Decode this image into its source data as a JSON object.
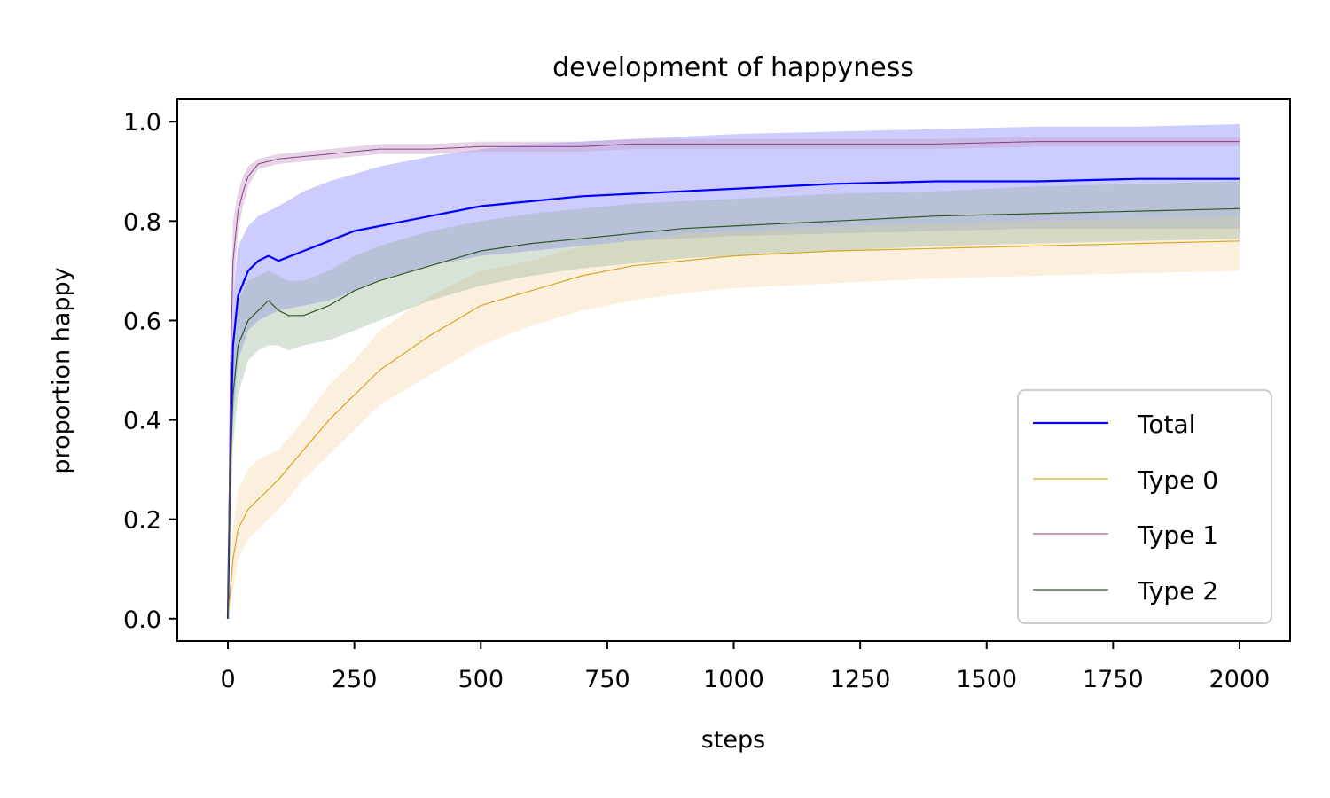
{
  "chart_data": {
    "type": "line",
    "title": "development of happyness",
    "xlabel": "steps",
    "ylabel": "proportion happy",
    "xlim": [
      -100,
      2100
    ],
    "ylim": [
      -0.045,
      1.045
    ],
    "xticks": [
      0,
      250,
      500,
      750,
      1000,
      1250,
      1500,
      1750,
      2000
    ],
    "xtick_labels": [
      "0",
      "250",
      "500",
      "750",
      "1000",
      "1250",
      "1500",
      "1750",
      "2000"
    ],
    "yticks": [
      0.0,
      0.2,
      0.4,
      0.6,
      0.8,
      1.0
    ],
    "ytick_labels": [
      "0.0",
      "0.2",
      "0.4",
      "0.6",
      "0.8",
      "1.0"
    ],
    "grid": false,
    "legend_position": "lower-right",
    "series": [
      {
        "name": "Total",
        "color": "#0000ff",
        "band_color": "#0000ff",
        "x": [
          0,
          5,
          10,
          20,
          40,
          60,
          80,
          100,
          150,
          200,
          250,
          300,
          400,
          500,
          600,
          700,
          800,
          900,
          1000,
          1200,
          1400,
          1600,
          1800,
          2000
        ],
        "y": [
          0.0,
          0.35,
          0.55,
          0.65,
          0.7,
          0.72,
          0.73,
          0.72,
          0.74,
          0.76,
          0.78,
          0.79,
          0.81,
          0.83,
          0.84,
          0.85,
          0.855,
          0.86,
          0.865,
          0.875,
          0.88,
          0.88,
          0.885,
          0.885
        ],
        "lower": [
          0.0,
          0.2,
          0.4,
          0.52,
          0.58,
          0.6,
          0.61,
          0.62,
          0.63,
          0.64,
          0.66,
          0.68,
          0.71,
          0.73,
          0.74,
          0.75,
          0.76,
          0.765,
          0.77,
          0.775,
          0.78,
          0.785,
          0.785,
          0.785
        ],
        "upper": [
          0.0,
          0.45,
          0.65,
          0.75,
          0.79,
          0.81,
          0.82,
          0.83,
          0.86,
          0.88,
          0.895,
          0.91,
          0.93,
          0.945,
          0.955,
          0.96,
          0.965,
          0.97,
          0.975,
          0.98,
          0.985,
          0.99,
          0.99,
          0.995
        ]
      },
      {
        "name": "Type 0",
        "color": "#daa520",
        "band_color": "#f5deb3",
        "x": [
          0,
          5,
          10,
          20,
          40,
          60,
          80,
          100,
          150,
          200,
          250,
          300,
          400,
          500,
          600,
          700,
          800,
          900,
          1000,
          1200,
          1400,
          1600,
          1800,
          2000
        ],
        "y": [
          0.0,
          0.06,
          0.12,
          0.18,
          0.22,
          0.24,
          0.26,
          0.28,
          0.34,
          0.4,
          0.45,
          0.5,
          0.57,
          0.63,
          0.66,
          0.69,
          0.71,
          0.72,
          0.73,
          0.74,
          0.745,
          0.75,
          0.755,
          0.76
        ],
        "lower": [
          0.0,
          0.02,
          0.06,
          0.12,
          0.16,
          0.18,
          0.2,
          0.22,
          0.28,
          0.33,
          0.38,
          0.43,
          0.49,
          0.55,
          0.59,
          0.62,
          0.64,
          0.655,
          0.665,
          0.675,
          0.685,
          0.69,
          0.695,
          0.7
        ],
        "upper": [
          0.0,
          0.1,
          0.18,
          0.26,
          0.3,
          0.32,
          0.33,
          0.34,
          0.4,
          0.47,
          0.52,
          0.58,
          0.65,
          0.7,
          0.72,
          0.75,
          0.76,
          0.775,
          0.78,
          0.79,
          0.795,
          0.8,
          0.805,
          0.81
        ]
      },
      {
        "name": "Type 1",
        "color": "#8b3a8b",
        "band_color": "#c8a0c8",
        "x": [
          0,
          5,
          10,
          20,
          30,
          40,
          60,
          80,
          100,
          150,
          200,
          250,
          300,
          400,
          500,
          600,
          700,
          800,
          900,
          1000,
          1200,
          1400,
          1600,
          1800,
          2000
        ],
        "y": [
          0.0,
          0.5,
          0.72,
          0.82,
          0.86,
          0.89,
          0.915,
          0.92,
          0.925,
          0.93,
          0.935,
          0.94,
          0.945,
          0.945,
          0.95,
          0.95,
          0.95,
          0.955,
          0.955,
          0.955,
          0.955,
          0.955,
          0.96,
          0.96,
          0.96
        ],
        "lower": [
          0.0,
          0.4,
          0.65,
          0.78,
          0.83,
          0.87,
          0.905,
          0.91,
          0.915,
          0.92,
          0.925,
          0.93,
          0.935,
          0.935,
          0.94,
          0.94,
          0.94,
          0.945,
          0.945,
          0.945,
          0.945,
          0.945,
          0.95,
          0.95,
          0.95
        ],
        "upper": [
          0.0,
          0.6,
          0.8,
          0.86,
          0.89,
          0.91,
          0.925,
          0.93,
          0.935,
          0.94,
          0.945,
          0.95,
          0.955,
          0.955,
          0.96,
          0.96,
          0.96,
          0.965,
          0.965,
          0.965,
          0.965,
          0.965,
          0.97,
          0.97,
          0.97
        ]
      },
      {
        "name": "Type 2",
        "color": "#2e5a1e",
        "band_color": "#8fb08f",
        "x": [
          0,
          5,
          10,
          20,
          40,
          60,
          80,
          100,
          120,
          150,
          200,
          250,
          300,
          400,
          500,
          600,
          700,
          800,
          900,
          1000,
          1200,
          1400,
          1600,
          1800,
          2000
        ],
        "y": [
          0.0,
          0.3,
          0.45,
          0.55,
          0.6,
          0.62,
          0.64,
          0.62,
          0.61,
          0.61,
          0.63,
          0.66,
          0.68,
          0.71,
          0.74,
          0.755,
          0.765,
          0.775,
          0.785,
          0.79,
          0.8,
          0.81,
          0.815,
          0.82,
          0.825
        ],
        "lower": [
          0.0,
          0.2,
          0.35,
          0.45,
          0.52,
          0.54,
          0.55,
          0.55,
          0.54,
          0.55,
          0.56,
          0.58,
          0.6,
          0.64,
          0.67,
          0.69,
          0.705,
          0.715,
          0.725,
          0.73,
          0.74,
          0.75,
          0.755,
          0.76,
          0.765
        ],
        "upper": [
          0.0,
          0.4,
          0.55,
          0.64,
          0.68,
          0.69,
          0.7,
          0.69,
          0.68,
          0.68,
          0.7,
          0.73,
          0.75,
          0.78,
          0.8,
          0.815,
          0.825,
          0.835,
          0.84,
          0.845,
          0.855,
          0.86,
          0.87,
          0.875,
          0.88
        ]
      }
    ]
  }
}
